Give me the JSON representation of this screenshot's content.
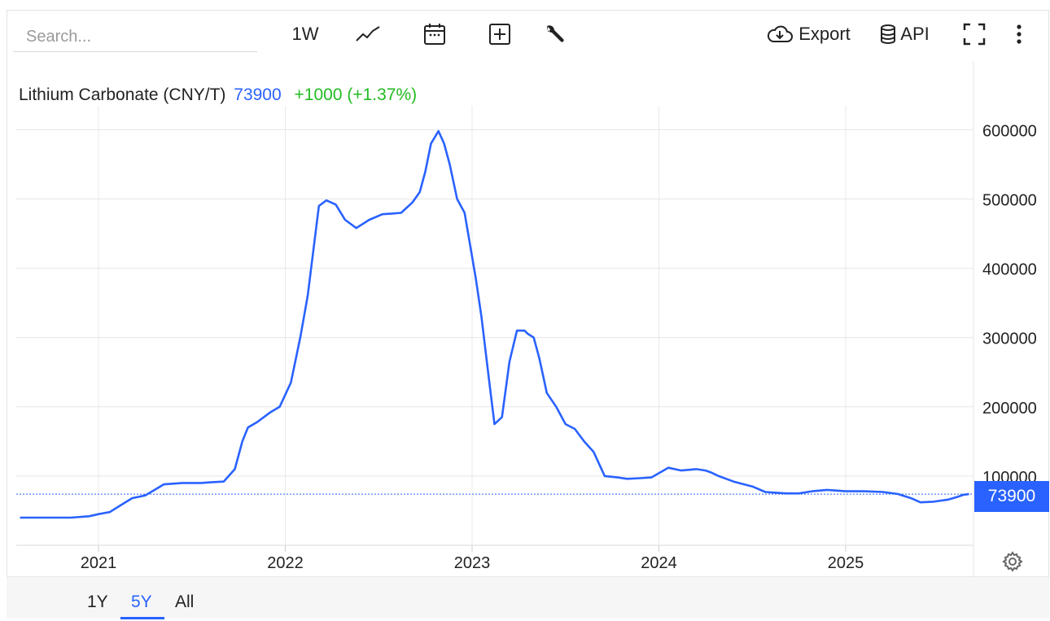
{
  "search": {
    "placeholder": "Search..."
  },
  "toolbar": {
    "interval_label": "1W",
    "export_label": "Export",
    "api_label": "API",
    "icons": [
      "line-chart-icon",
      "calendar-icon",
      "add-box-icon",
      "wrench-icon",
      "cloud-download-icon",
      "database-icon",
      "fullscreen-icon",
      "more-vert-icon"
    ]
  },
  "header": {
    "name": "Lithium Carbonate (CNY/T)",
    "price": "73900",
    "change": "+1000 (+1.37%)"
  },
  "price_tag": "73900",
  "ranges": [
    {
      "label": "1Y",
      "active": false
    },
    {
      "label": "5Y",
      "active": true
    },
    {
      "label": "All",
      "active": false
    }
  ],
  "colors": {
    "series": "#2962ff",
    "change_positive": "#22bb22",
    "grid": "#e6e6e6",
    "axis_text": "#222222"
  },
  "chart_data": {
    "type": "line",
    "title": "Lithium Carbonate (CNY/T)",
    "xlabel": "",
    "ylabel": "",
    "ylim": [
      0,
      600000
    ],
    "y_ticks": [
      100000,
      200000,
      300000,
      400000,
      500000,
      600000
    ],
    "y_tick_labels": [
      "100000",
      "200000",
      "300000",
      "400000",
      "500000",
      "600000"
    ],
    "x_ticks": [
      2021,
      2022,
      2023,
      2024,
      2025
    ],
    "x_tick_labels": [
      "2021",
      "2022",
      "2023",
      "2024",
      "2025"
    ],
    "xlim": [
      2020.57,
      2025.73
    ],
    "grid": true,
    "last_value": 73900,
    "series": [
      {
        "x": [
          2020.58,
          2020.7,
          2020.85,
          2020.95,
          2021.0,
          2021.06,
          2021.12,
          2021.18,
          2021.25,
          2021.35,
          2021.45,
          2021.55,
          2021.6,
          2021.67,
          2021.73,
          2021.77,
          2021.8,
          2021.85,
          2021.92,
          2021.97,
          2022.03,
          2022.08,
          2022.12,
          2022.15,
          2022.18,
          2022.22,
          2022.27,
          2022.32,
          2022.38,
          2022.45,
          2022.52,
          2022.57,
          2022.62,
          2022.68,
          2022.72,
          2022.75,
          2022.78,
          2022.82,
          2022.85,
          2022.88,
          2022.92,
          2022.96,
          2023.02,
          2023.05,
          2023.09,
          2023.12,
          2023.16,
          2023.2,
          2023.24,
          2023.28,
          2023.3,
          2023.33,
          2023.36,
          2023.4,
          2023.45,
          2023.5,
          2023.55,
          2023.6,
          2023.65,
          2023.71,
          2023.78,
          2023.83,
          2023.9,
          2023.96,
          2024.05,
          2024.12,
          2024.2,
          2024.25,
          2024.28,
          2024.32,
          2024.4,
          2024.5,
          2024.57,
          2024.62,
          2024.68,
          2024.75,
          2024.82,
          2024.9,
          2025.0,
          2025.1,
          2025.2,
          2025.28,
          2025.35,
          2025.4,
          2025.47,
          2025.55,
          2025.6,
          2025.63,
          2025.66
        ],
        "values": [
          40000,
          40000,
          40000,
          42000,
          45000,
          48000,
          58000,
          68000,
          72000,
          88000,
          90000,
          90000,
          91000,
          92000,
          110000,
          150000,
          170000,
          178000,
          192000,
          200000,
          235000,
          300000,
          360000,
          425000,
          490000,
          498000,
          492000,
          470000,
          458000,
          470000,
          478000,
          479000,
          480000,
          495000,
          510000,
          540000,
          580000,
          598000,
          580000,
          550000,
          500000,
          480000,
          385000,
          330000,
          240000,
          175000,
          185000,
          265000,
          310000,
          310000,
          305000,
          300000,
          270000,
          220000,
          200000,
          175000,
          168000,
          150000,
          135000,
          100000,
          98000,
          96000,
          97000,
          98000,
          112000,
          108000,
          110000,
          108000,
          105000,
          100000,
          92000,
          85000,
          77000,
          76000,
          75000,
          75000,
          78000,
          80000,
          78000,
          78000,
          77000,
          74000,
          68000,
          62000,
          63000,
          66000,
          70000,
          73000,
          73900
        ]
      }
    ]
  }
}
